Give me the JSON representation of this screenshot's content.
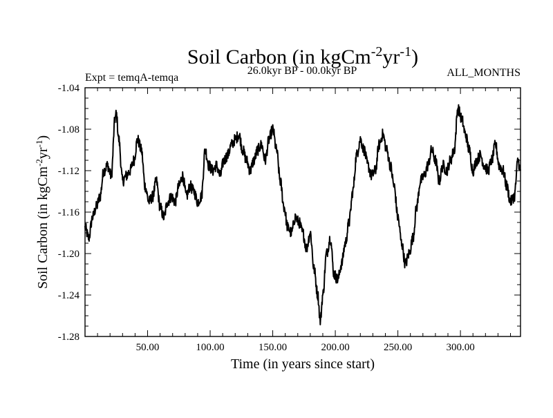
{
  "chart_data": {
    "type": "line",
    "title": {
      "text": "Soil Carbon (in kgCm",
      "sup1": "-2",
      "mid": "yr",
      "sup2": "-1",
      "end": ")"
    },
    "subtitle_left": "Expt = temqA-temqa",
    "subtitle_center": "26.0kyr BP - 00.0kyr BP",
    "subtitle_right": "ALL_MONTHS",
    "xlabel": "Time (in years since start)",
    "ylabel": {
      "text": "Soil Carbon (in kgCm",
      "sup1": "-2",
      "mid": "yr",
      "sup2": "-1",
      "end": ")"
    },
    "xlim": [
      0,
      348
    ],
    "ylim": [
      -1.28,
      -1.04
    ],
    "x_ticks": [
      50,
      100,
      150,
      200,
      250,
      300
    ],
    "x_tick_labels": [
      "50.00",
      "100.00",
      "150.00",
      "200.00",
      "250.00",
      "300.00"
    ],
    "y_ticks": [
      -1.04,
      -1.08,
      -1.12,
      -1.16,
      -1.2,
      -1.24,
      -1.28
    ],
    "y_tick_labels": [
      "-1.04",
      "-1.08",
      "-1.12",
      "-1.16",
      "-1.20",
      "-1.24",
      "-1.28"
    ],
    "grid": false,
    "series": [
      {
        "name": "Soil Carbon",
        "color": "#000000",
        "x": [
          0,
          3,
          6,
          9,
          12,
          15,
          18,
          21,
          24,
          25,
          27,
          30,
          33,
          36,
          39,
          42,
          45,
          48,
          51,
          54,
          57,
          60,
          63,
          66,
          69,
          72,
          75,
          78,
          81,
          84,
          87,
          90,
          93,
          96,
          99,
          102,
          105,
          108,
          111,
          114,
          117,
          120,
          123,
          126,
          129,
          132,
          135,
          138,
          141,
          144,
          147,
          150,
          153,
          156,
          159,
          162,
          165,
          168,
          171,
          174,
          177,
          180,
          183,
          186,
          188,
          190,
          193,
          196,
          199,
          202,
          205,
          208,
          211,
          214,
          217,
          220,
          223,
          226,
          229,
          232,
          235,
          238,
          241,
          244,
          247,
          250,
          253,
          256,
          259,
          262,
          265,
          268,
          271,
          274,
          277,
          280,
          283,
          286,
          289,
          292,
          295,
          298,
          301,
          304,
          307,
          310,
          313,
          316,
          319,
          322,
          325,
          328,
          331,
          334,
          337,
          340,
          343,
          346,
          348
        ],
        "y": [
          -1.175,
          -1.185,
          -1.165,
          -1.155,
          -1.145,
          -1.12,
          -1.115,
          -1.125,
          -1.07,
          -1.065,
          -1.09,
          -1.13,
          -1.125,
          -1.12,
          -1.11,
          -1.09,
          -1.1,
          -1.135,
          -1.15,
          -1.145,
          -1.13,
          -1.155,
          -1.165,
          -1.15,
          -1.145,
          -1.15,
          -1.135,
          -1.125,
          -1.145,
          -1.135,
          -1.14,
          -1.15,
          -1.145,
          -1.1,
          -1.115,
          -1.12,
          -1.115,
          -1.125,
          -1.11,
          -1.105,
          -1.095,
          -1.09,
          -1.085,
          -1.1,
          -1.11,
          -1.12,
          -1.11,
          -1.1,
          -1.095,
          -1.11,
          -1.09,
          -1.08,
          -1.1,
          -1.13,
          -1.155,
          -1.175,
          -1.18,
          -1.165,
          -1.17,
          -1.18,
          -1.195,
          -1.18,
          -1.215,
          -1.24,
          -1.265,
          -1.24,
          -1.2,
          -1.185,
          -1.22,
          -1.225,
          -1.21,
          -1.19,
          -1.17,
          -1.14,
          -1.105,
          -1.09,
          -1.1,
          -1.115,
          -1.125,
          -1.12,
          -1.095,
          -1.085,
          -1.1,
          -1.115,
          -1.135,
          -1.165,
          -1.19,
          -1.21,
          -1.2,
          -1.185,
          -1.155,
          -1.13,
          -1.125,
          -1.115,
          -1.1,
          -1.11,
          -1.13,
          -1.115,
          -1.12,
          -1.11,
          -1.1,
          -1.06,
          -1.07,
          -1.085,
          -1.1,
          -1.12,
          -1.11,
          -1.105,
          -1.115,
          -1.12,
          -1.11,
          -1.095,
          -1.115,
          -1.12,
          -1.135,
          -1.15,
          -1.145,
          -1.11,
          -1.12
        ]
      }
    ]
  }
}
